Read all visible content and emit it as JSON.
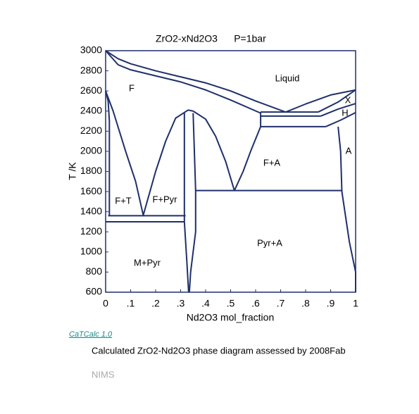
{
  "chart_data": {
    "type": "line",
    "title": "ZrO2-xNd2O3",
    "subtitle": "P=1bar",
    "x_label": "Nd2O3 mol_fraction",
    "y_label": "T /K",
    "color": "#1f2f6b",
    "xlim": [
      0,
      1
    ],
    "ylim": [
      600,
      3000
    ],
    "xticks": [
      0,
      {
        "value": 0.1,
        "label": ".1"
      },
      {
        "value": 0.2,
        "label": ".2"
      },
      {
        "value": 0.3,
        "label": ".3"
      },
      {
        "value": 0.4,
        "label": ".4"
      },
      {
        "value": 0.5,
        "label": ".5"
      },
      {
        "value": 0.6,
        "label": ".6"
      },
      {
        "value": 0.7,
        "label": ".7"
      },
      {
        "value": 0.8,
        "label": ".8"
      },
      {
        "value": 0.9,
        "label": ".9"
      },
      1
    ],
    "yticks": [
      600,
      800,
      1000,
      1200,
      1400,
      1600,
      1800,
      2000,
      2200,
      2400,
      2600,
      2800,
      3000
    ],
    "regions": [
      "Liquid",
      "F",
      "X",
      "H",
      "A",
      "F+A",
      "F+T",
      "F+Pyr",
      "Pyr+A",
      "M+Pyr"
    ],
    "series": [
      {
        "x": [
          0,
          0.05,
          0.1,
          0.2,
          0.3,
          0.4,
          0.5,
          0.6,
          0.72
        ],
        "values": [
          3000,
          2920,
          2870,
          2800,
          2740,
          2680,
          2600,
          2500,
          2390
        ]
      },
      {
        "x": [
          0,
          0.05,
          0.1,
          0.2,
          0.3,
          0.4,
          0.5,
          0.62
        ],
        "values": [
          3000,
          2860,
          2810,
          2750,
          2690,
          2610,
          2510,
          2380
        ]
      },
      {
        "x": [
          0.72,
          0.8,
          0.9,
          1
        ],
        "values": [
          2390,
          2470,
          2560,
          2610
        ]
      },
      {
        "x": [
          0.85,
          0.93,
          1
        ],
        "values": [
          2390,
          2490,
          2610
        ]
      },
      {
        "x": [
          0.86,
          0.93,
          1
        ],
        "values": [
          2350,
          2420,
          2475
        ]
      },
      {
        "x": [
          0.88,
          0.94,
          1
        ],
        "values": [
          2245,
          2310,
          2385
        ]
      },
      {
        "x": [
          0.62,
          0.85
        ],
        "values": [
          2390,
          2390
        ]
      },
      {
        "x": [
          0.62,
          0.86
        ],
        "values": [
          2350,
          2350
        ]
      },
      {
        "x": [
          0.62,
          0.88
        ],
        "values": [
          2245,
          2245
        ]
      },
      {
        "x": [
          0.62,
          0.62
        ],
        "values": [
          2245,
          2390
        ]
      },
      {
        "x": [
          0.93,
          0.94,
          0.945,
          0.975,
          1,
          1
        ],
        "values": [
          2245,
          2000,
          1600,
          1100,
          800,
          600
        ]
      },
      {
        "x": [
          0.62,
          0.58,
          0.55,
          0.515
        ],
        "values": [
          2245,
          2000,
          1800,
          1610
        ]
      },
      {
        "x": [
          0.515,
          0.48,
          0.44,
          0.4,
          0.35
        ],
        "values": [
          1610,
          1900,
          2150,
          2320,
          2400
        ]
      },
      {
        "x": [
          0.36,
          0.945
        ],
        "values": [
          1610,
          1610
        ]
      },
      {
        "x": [
          0.15,
          0.2,
          0.24,
          0.28,
          0.33,
          0.35
        ],
        "values": [
          1360,
          1800,
          2100,
          2330,
          2410,
          2400
        ]
      },
      {
        "x": [
          0.315,
          0.315,
          0.325,
          0.332
        ],
        "values": [
          2380,
          1300,
          900,
          600
        ]
      },
      {
        "x": [
          0.35,
          0.36,
          0.36,
          0.34,
          0.335
        ],
        "values": [
          2380,
          1610,
          1200,
          800,
          600
        ]
      },
      {
        "x": [
          0,
          0.01,
          0.015,
          0.015
        ],
        "values": [
          2600,
          2500,
          2300,
          1360
        ]
      },
      {
        "x": [
          0,
          0.03,
          0.08,
          0.12,
          0.15
        ],
        "values": [
          2600,
          2400,
          2000,
          1700,
          1370
        ]
      },
      {
        "x": [
          0.01,
          0.32
        ],
        "values": [
          1360,
          1360
        ]
      },
      {
        "x": [
          0,
          0.315
        ],
        "values": [
          1300,
          1300
        ]
      }
    ]
  },
  "footer": {
    "software": "CaTCalc 1.0",
    "caption": "Calculated ZrO2-Nd2O3 phase diagram assessed by 2008Fab",
    "credit": "NIMS"
  }
}
